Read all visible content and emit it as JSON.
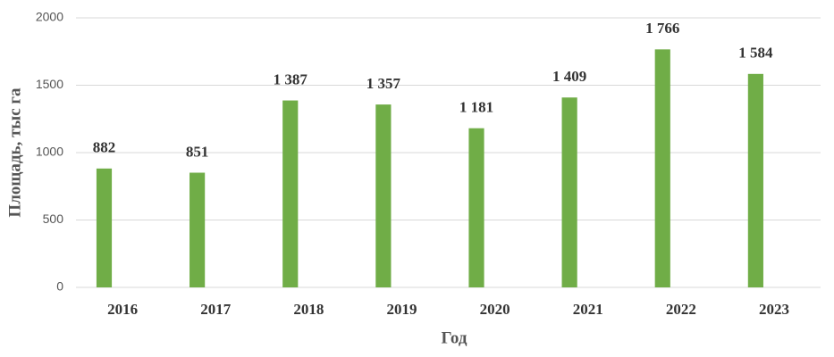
{
  "chart_data": {
    "type": "bar",
    "categories": [
      "2016",
      "2017",
      "2018",
      "2019",
      "2020",
      "2021",
      "2022",
      "2023"
    ],
    "values": [
      882,
      851,
      1387,
      1357,
      1181,
      1409,
      1766,
      1584
    ],
    "value_labels": [
      "882",
      "851",
      "1 387",
      "1 357",
      "1 181",
      "1 409",
      "1 766",
      "1 584"
    ],
    "color": "#70ad47",
    "x_label": "Год",
    "y_label": "Площадь, тыс га",
    "ylim": [
      0,
      2000
    ],
    "yticks": [
      0,
      500,
      1000,
      1500,
      2000
    ],
    "grid": true
  }
}
